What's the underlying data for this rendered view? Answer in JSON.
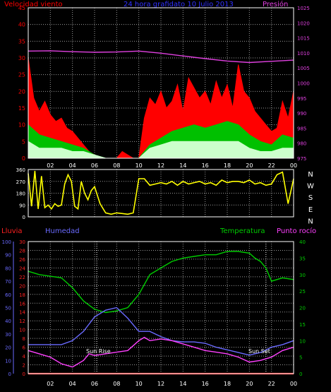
{
  "colors": {
    "background": "#000000",
    "frame": "#ffffff",
    "grid": "#9a9a9a",
    "wind": "#ff0000",
    "gust_green": "#00c000",
    "wind_avg": "#ccffcc",
    "pressure": "#e040e0",
    "direction": "#ffff00",
    "rain": "#ff2020",
    "humidity": "#6a6aff",
    "temperature": "#00cc00",
    "dewpoint": "#ff40ff",
    "text_white": "#ffffff"
  },
  "chart_data": [
    {
      "id": "wind_pressure",
      "type": "area",
      "title": "24 hora grafidato 10 Julio 2013",
      "left_label": "Velocidad viento",
      "right_label": "Presión",
      "x_ticks": [
        "02",
        "04",
        "06",
        "08",
        "10",
        "12",
        "14",
        "16",
        "18",
        "20",
        "22",
        "00"
      ],
      "y_left_ticks": [
        "0",
        "5",
        "10",
        "15",
        "20",
        "25",
        "30",
        "35",
        "40",
        "45"
      ],
      "y_left_range": [
        0,
        45
      ],
      "y_right_ticks": [
        "975",
        "980",
        "985",
        "990",
        "995",
        "1000",
        "1005",
        "1010",
        "1015",
        "1020",
        "1025"
      ],
      "y_right_range": [
        975,
        1025
      ],
      "grid": true,
      "series": [
        {
          "key": "gust",
          "x": [
            0,
            0.5,
            1,
            1.5,
            2,
            2.5,
            3,
            3.5,
            4,
            4.5,
            5,
            5.5,
            6,
            6.5,
            7,
            7.5,
            8,
            8.5,
            9,
            9.5,
            10,
            10.5,
            11,
            11.5,
            12,
            12.5,
            13,
            13.5,
            14,
            14.5,
            15,
            15.5,
            16,
            16.5,
            17,
            17.5,
            18,
            18.5,
            19,
            19.5,
            20,
            20.5,
            21,
            21.5,
            22,
            22.5,
            23,
            23.5,
            24
          ],
          "values": [
            30,
            18,
            14,
            17,
            13,
            11,
            12,
            9,
            8,
            6,
            4,
            2,
            1,
            0,
            0,
            0,
            0,
            2,
            1,
            0,
            0,
            12,
            18,
            16,
            20,
            15,
            17,
            22,
            14,
            24,
            21,
            18,
            20,
            16,
            23,
            18,
            22,
            15,
            28,
            20,
            18,
            14,
            12,
            10,
            8,
            9,
            17,
            12,
            20
          ]
        },
        {
          "key": "green",
          "x": [
            0,
            1,
            2,
            3,
            4,
            5,
            6,
            7,
            8,
            9,
            10,
            11,
            12,
            13,
            14,
            15,
            16,
            17,
            18,
            19,
            20,
            21,
            22,
            23,
            24
          ],
          "values": [
            10,
            7,
            6,
            5,
            4,
            3,
            1,
            0,
            0,
            0,
            0,
            4,
            6,
            8,
            9,
            10,
            9,
            10,
            11,
            10,
            7,
            5,
            4,
            7,
            6
          ]
        },
        {
          "key": "avg",
          "x": [
            0,
            1,
            2,
            3,
            4,
            5,
            6,
            7,
            8,
            9,
            10,
            11,
            12,
            13,
            14,
            15,
            16,
            17,
            18,
            19,
            20,
            21,
            22,
            23,
            24
          ],
          "values": [
            5,
            3,
            3,
            3,
            2,
            2,
            1,
            0,
            0,
            0,
            0,
            3,
            4,
            5,
            5,
            5,
            5,
            5,
            5,
            5,
            3,
            2,
            2,
            3,
            3
          ]
        },
        {
          "key": "pressure",
          "x": [
            0,
            2,
            4,
            6,
            8,
            10,
            12,
            14,
            16,
            18,
            20,
            22,
            24
          ],
          "values": [
            1010.6,
            1010.7,
            1010.4,
            1010.2,
            1010.3,
            1010.6,
            1009.9,
            1009.0,
            1008.1,
            1007.3,
            1006.8,
            1007.2,
            1007.6
          ]
        }
      ]
    },
    {
      "id": "wind_direction",
      "type": "line",
      "x_ticks": [
        "02",
        "04",
        "06",
        "08",
        "10",
        "12",
        "14",
        "16",
        "18",
        "20",
        "22",
        "00"
      ],
      "y_left_ticks": [
        "0",
        "90",
        "180",
        "270",
        "360"
      ],
      "y_range": [
        0,
        360
      ],
      "compass_labels": [
        "N",
        "W",
        "S",
        "E",
        "N"
      ],
      "grid": true,
      "series": [
        {
          "key": "direction",
          "x": [
            0,
            0.3,
            0.6,
            0.9,
            1.2,
            1.5,
            1.8,
            2.1,
            2.4,
            2.7,
            3.0,
            3.3,
            3.6,
            3.9,
            4.2,
            4.5,
            4.8,
            5.1,
            5.4,
            5.7,
            6.0,
            6.5,
            7.0,
            7.5,
            8.0,
            8.5,
            9.0,
            9.5,
            10.0,
            10.5,
            11.0,
            11.5,
            12.0,
            12.5,
            13.0,
            13.5,
            14.0,
            14.5,
            15.0,
            15.5,
            16.0,
            16.5,
            17.0,
            17.5,
            18.0,
            18.5,
            19.0,
            19.5,
            20.0,
            20.5,
            21.0,
            21.5,
            22.0,
            22.5,
            23.0,
            23.5,
            24.0
          ],
          "values": [
            330,
            80,
            350,
            60,
            310,
            70,
            90,
            60,
            100,
            80,
            90,
            250,
            320,
            270,
            80,
            60,
            270,
            180,
            130,
            200,
            230,
            100,
            30,
            20,
            30,
            25,
            20,
            30,
            290,
            290,
            240,
            250,
            260,
            250,
            270,
            240,
            270,
            250,
            260,
            270,
            250,
            260,
            240,
            280,
            260,
            270,
            270,
            260,
            280,
            250,
            260,
            240,
            250,
            320,
            340,
            100,
            290
          ]
        }
      ]
    },
    {
      "id": "humidity_temp",
      "type": "line",
      "labels": {
        "rain": "Lluvia",
        "humidity": "Humedad",
        "temperature": "Temperatura",
        "dewpoint": "Punto rocío"
      },
      "annotations": [
        "Sun Rise",
        "Sun Set"
      ],
      "x_ticks": [
        "02",
        "04",
        "06",
        "08",
        "10",
        "12",
        "14",
        "16",
        "18",
        "20",
        "22",
        "00"
      ],
      "axis_humidity_ticks": [
        "0",
        "10",
        "20",
        "30",
        "40",
        "50",
        "60",
        "70",
        "80",
        "90",
        "100"
      ],
      "axis_humidity_range": [
        0,
        100
      ],
      "axis_rain_ticks": [
        "0",
        "2",
        "4",
        "6",
        "8",
        "10",
        "12",
        "14",
        "16",
        "18",
        "20",
        "22",
        "24",
        "26",
        "28",
        "30"
      ],
      "axis_rain_range": [
        0,
        30
      ],
      "axis_temp_ticks": [
        "0",
        "5",
        "10",
        "15",
        "20",
        "25",
        "30",
        "35",
        "40"
      ],
      "axis_temp_range": [
        0,
        40
      ],
      "grid": true,
      "series": [
        {
          "key": "temperature",
          "axis": "temp",
          "x": [
            0,
            1,
            2,
            3,
            4,
            5,
            6,
            7,
            8,
            9,
            10,
            11,
            12,
            13,
            14,
            15,
            16,
            17,
            18,
            19,
            20,
            20.5,
            21,
            21.5,
            22,
            23,
            24
          ],
          "values": [
            31,
            30,
            29.5,
            29,
            26,
            22,
            19.5,
            18.5,
            19,
            20,
            24,
            30,
            32,
            34,
            35,
            35.5,
            36,
            36,
            37,
            37,
            36.5,
            35,
            34,
            32,
            28,
            29,
            28.5
          ]
        },
        {
          "key": "humidity",
          "axis": "humidity",
          "x": [
            0,
            1,
            2,
            3,
            4,
            5,
            6,
            7,
            8,
            9,
            10,
            11,
            12,
            13,
            14,
            15,
            16,
            17,
            18,
            19,
            20,
            21,
            22,
            23,
            24
          ],
          "values": [
            22,
            22,
            22,
            22,
            25,
            32,
            43,
            48,
            50,
            42,
            32,
            32,
            28,
            25,
            24,
            24,
            23,
            20,
            18,
            16,
            14,
            16,
            20,
            22,
            25
          ]
        },
        {
          "key": "dewpoint",
          "axis": "temp",
          "x": [
            0,
            1,
            2,
            3,
            4,
            5,
            5.5,
            6,
            7,
            8,
            9,
            10,
            10.5,
            11,
            12,
            13,
            14,
            15,
            16,
            17,
            18,
            19,
            20,
            21,
            22,
            23,
            24
          ],
          "values": [
            7,
            6,
            5,
            3,
            2,
            4,
            6,
            5.5,
            6,
            6.5,
            7,
            10,
            11,
            10,
            10.5,
            10,
            9,
            8,
            7,
            6.5,
            6,
            5,
            3.5,
            4,
            5,
            7,
            8
          ]
        },
        {
          "key": "rain",
          "axis": "rain",
          "x": [
            0,
            24
          ],
          "values": [
            0,
            0
          ]
        }
      ],
      "sun_events": {
        "sunrise_hour": 6.2,
        "sunset_hour": 21.5
      }
    }
  ]
}
